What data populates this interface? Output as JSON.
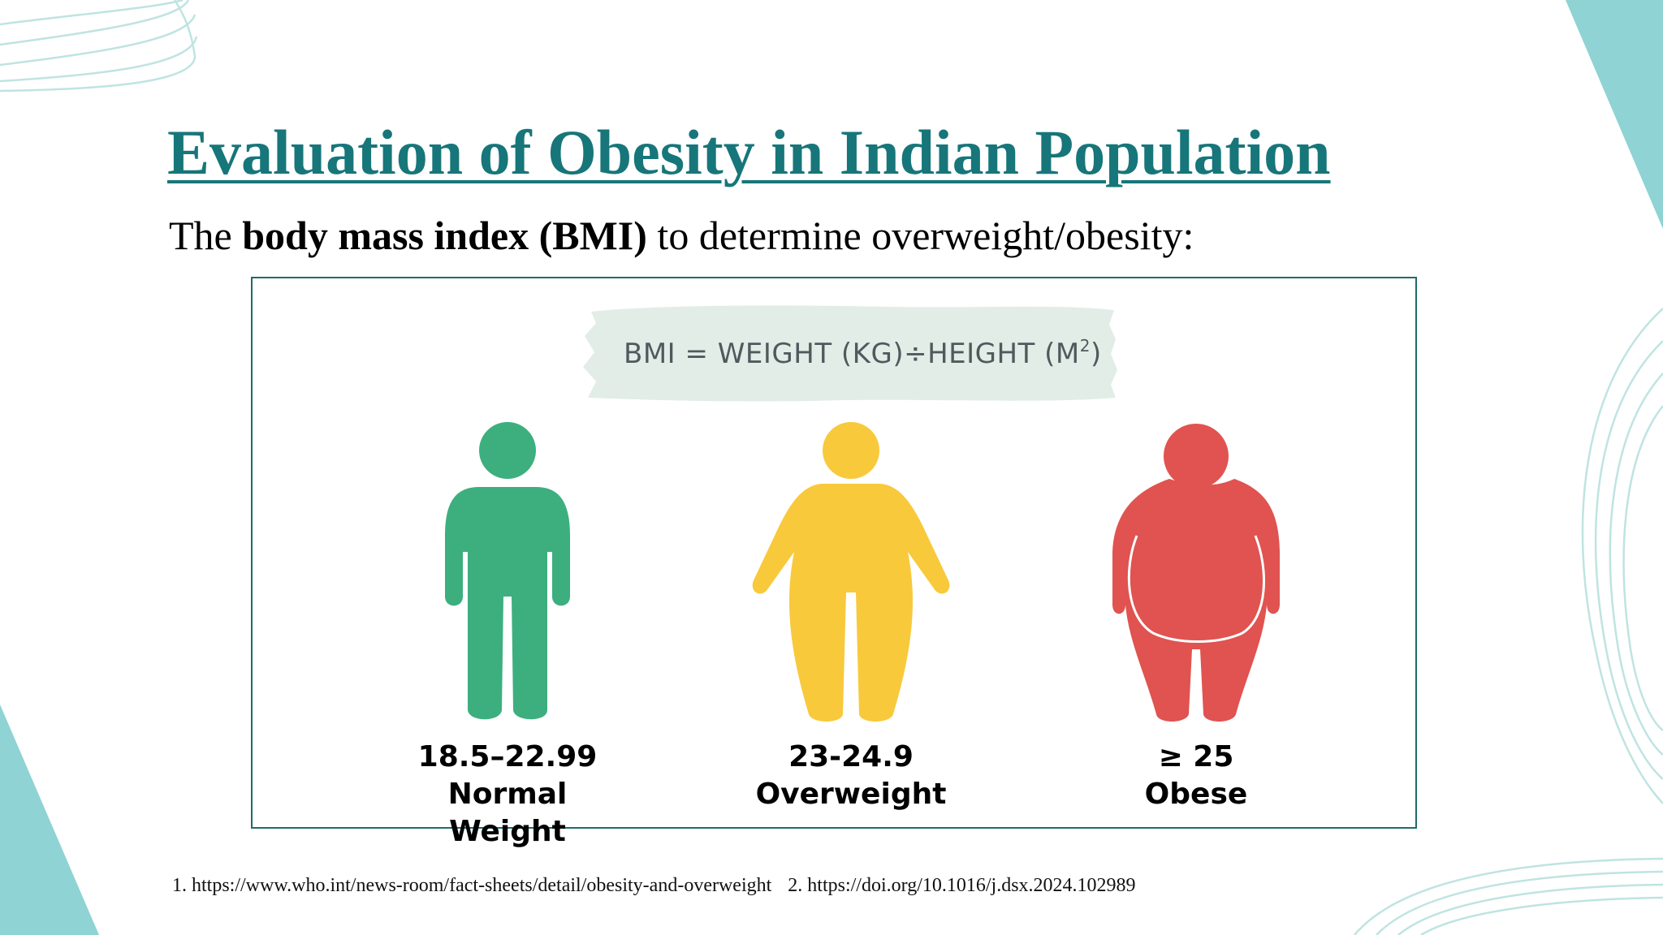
{
  "slide": {
    "title": "Evaluation of Obesity in Indian Population",
    "subtitle_prefix": "The ",
    "subtitle_bold": "body mass index (BMI)",
    "subtitle_suffix": " to determine overweight/obesity:"
  },
  "infographic": {
    "formula_main": "BMI = WEIGHT (KG)÷HEIGHT (M",
    "formula_sup": "2",
    "formula_close": ")",
    "categories": [
      {
        "range": "18.5–22.99",
        "label": "Normal Weight",
        "color": "#3daf7f"
      },
      {
        "range": "23-24.9",
        "label": "Overweight",
        "color": "#f9c93c"
      },
      {
        "range": "≥ 25",
        "label": "Obese",
        "color": "#e05350"
      }
    ]
  },
  "references": [
    "1. https://www.who.int/news-room/fact-sheets/detail/obesity-and-overweight",
    "2. https://doi.org/10.1016/j.dsx.2024.102989"
  ],
  "theme": {
    "accent": "#17767a",
    "corner_fill": "#8fd3d4",
    "line_color": "#bfe4e1"
  }
}
